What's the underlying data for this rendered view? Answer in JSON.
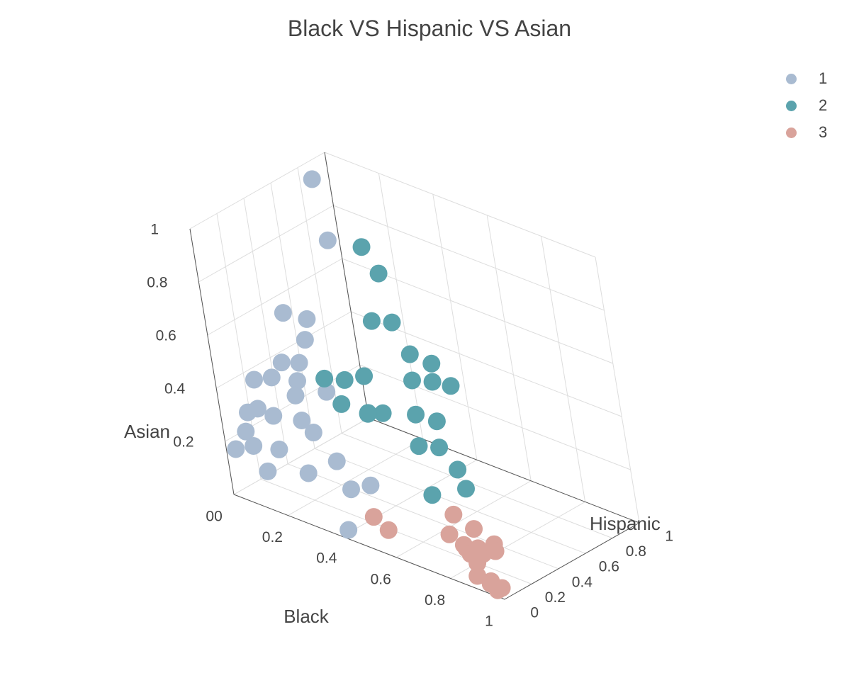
{
  "chart_data": {
    "type": "scatter3d",
    "title": "Black VS Hispanic VS Asian",
    "axes": {
      "x": {
        "label": "Black",
        "range": [
          0,
          1
        ],
        "ticks": [
          "0",
          "0.2",
          "0.4",
          "0.6",
          "0.8",
          "1"
        ]
      },
      "y": {
        "label": "Hispanic",
        "range": [
          0,
          1
        ],
        "ticks": [
          "0",
          "0.2",
          "0.4",
          "0.6",
          "0.8",
          "1"
        ]
      },
      "z": {
        "label": "Asian",
        "range": [
          0,
          1
        ],
        "ticks": [
          "0",
          "0.2",
          "0.4",
          "0.6",
          "0.8",
          "1"
        ]
      }
    },
    "grid": true,
    "legend_position": "top-right",
    "series": [
      {
        "name": "1",
        "color": "#a9bbd1",
        "points": [
          [
            0.02,
            0.85,
            0.95
          ],
          [
            0.1,
            0.75,
            0.78
          ],
          [
            0.1,
            0.52,
            0.55
          ],
          [
            0.08,
            0.4,
            0.6
          ],
          [
            0.12,
            0.45,
            0.5
          ],
          [
            0.1,
            0.3,
            0.45
          ],
          [
            0.14,
            0.35,
            0.45
          ],
          [
            0.05,
            0.18,
            0.4
          ],
          [
            0.08,
            0.25,
            0.4
          ],
          [
            0.15,
            0.3,
            0.4
          ],
          [
            0.12,
            0.15,
            0.3
          ],
          [
            0.18,
            0.22,
            0.38
          ],
          [
            0.05,
            0.1,
            0.3
          ],
          [
            0.03,
            0.1,
            0.22
          ],
          [
            0.08,
            0.05,
            0.2
          ],
          [
            0.15,
            0.1,
            0.2
          ],
          [
            0.2,
            0.2,
            0.3
          ],
          [
            0.25,
            0.18,
            0.28
          ],
          [
            0.02,
            0.03,
            0.17
          ],
          [
            0.12,
            0.05,
            0.12
          ],
          [
            0.25,
            0.1,
            0.15
          ],
          [
            0.3,
            0.22,
            0.18
          ],
          [
            0.35,
            0.2,
            0.1
          ],
          [
            0.4,
            0.25,
            0.12
          ],
          [
            0.4,
            0.05,
            0.01
          ],
          [
            0.2,
            0.4,
            0.35
          ],
          [
            0.08,
            0.12,
            0.32
          ]
        ]
      },
      {
        "name": "2",
        "color": "#5ba3ad",
        "points": [
          [
            0.2,
            0.8,
            0.78
          ],
          [
            0.25,
            0.8,
            0.7
          ],
          [
            0.25,
            0.7,
            0.55
          ],
          [
            0.3,
            0.75,
            0.55
          ],
          [
            0.35,
            0.75,
            0.45
          ],
          [
            0.4,
            0.8,
            0.42
          ],
          [
            0.45,
            0.82,
            0.35
          ],
          [
            0.4,
            0.65,
            0.4
          ],
          [
            0.2,
            0.4,
            0.4
          ],
          [
            0.25,
            0.45,
            0.4
          ],
          [
            0.3,
            0.5,
            0.42
          ],
          [
            0.28,
            0.35,
            0.35
          ],
          [
            0.35,
            0.4,
            0.33
          ],
          [
            0.32,
            0.45,
            0.3
          ],
          [
            0.45,
            0.55,
            0.32
          ],
          [
            0.5,
            0.6,
            0.3
          ],
          [
            0.5,
            0.45,
            0.25
          ],
          [
            0.55,
            0.5,
            0.25
          ],
          [
            0.6,
            0.55,
            0.1
          ],
          [
            0.55,
            0.4,
            0.1
          ],
          [
            0.62,
            0.48,
            0.2
          ],
          [
            0.35,
            0.5,
            0.3
          ],
          [
            0.45,
            0.7,
            0.4
          ]
        ]
      },
      {
        "name": "3",
        "color": "#d9a39b",
        "points": [
          [
            0.45,
            0.15,
            0.05
          ],
          [
            0.5,
            0.15,
            0.02
          ],
          [
            0.65,
            0.35,
            0.08
          ],
          [
            0.65,
            0.3,
            0.02
          ],
          [
            0.7,
            0.3,
            0.0
          ],
          [
            0.75,
            0.3,
            0.08
          ],
          [
            0.75,
            0.25,
            0.0
          ],
          [
            0.8,
            0.25,
            0.02
          ],
          [
            0.8,
            0.2,
            0.0
          ],
          [
            0.82,
            0.3,
            0.05
          ],
          [
            0.85,
            0.25,
            0.05
          ],
          [
            0.85,
            0.1,
            0.0
          ],
          [
            0.9,
            0.1,
            0.0
          ],
          [
            0.95,
            0.08,
            0.0
          ],
          [
            0.95,
            0.05,
            0.0
          ],
          [
            0.92,
            0.06,
            0.01
          ],
          [
            0.72,
            0.28,
            0.0
          ],
          [
            0.8,
            0.22,
            0.05
          ]
        ]
      }
    ]
  }
}
